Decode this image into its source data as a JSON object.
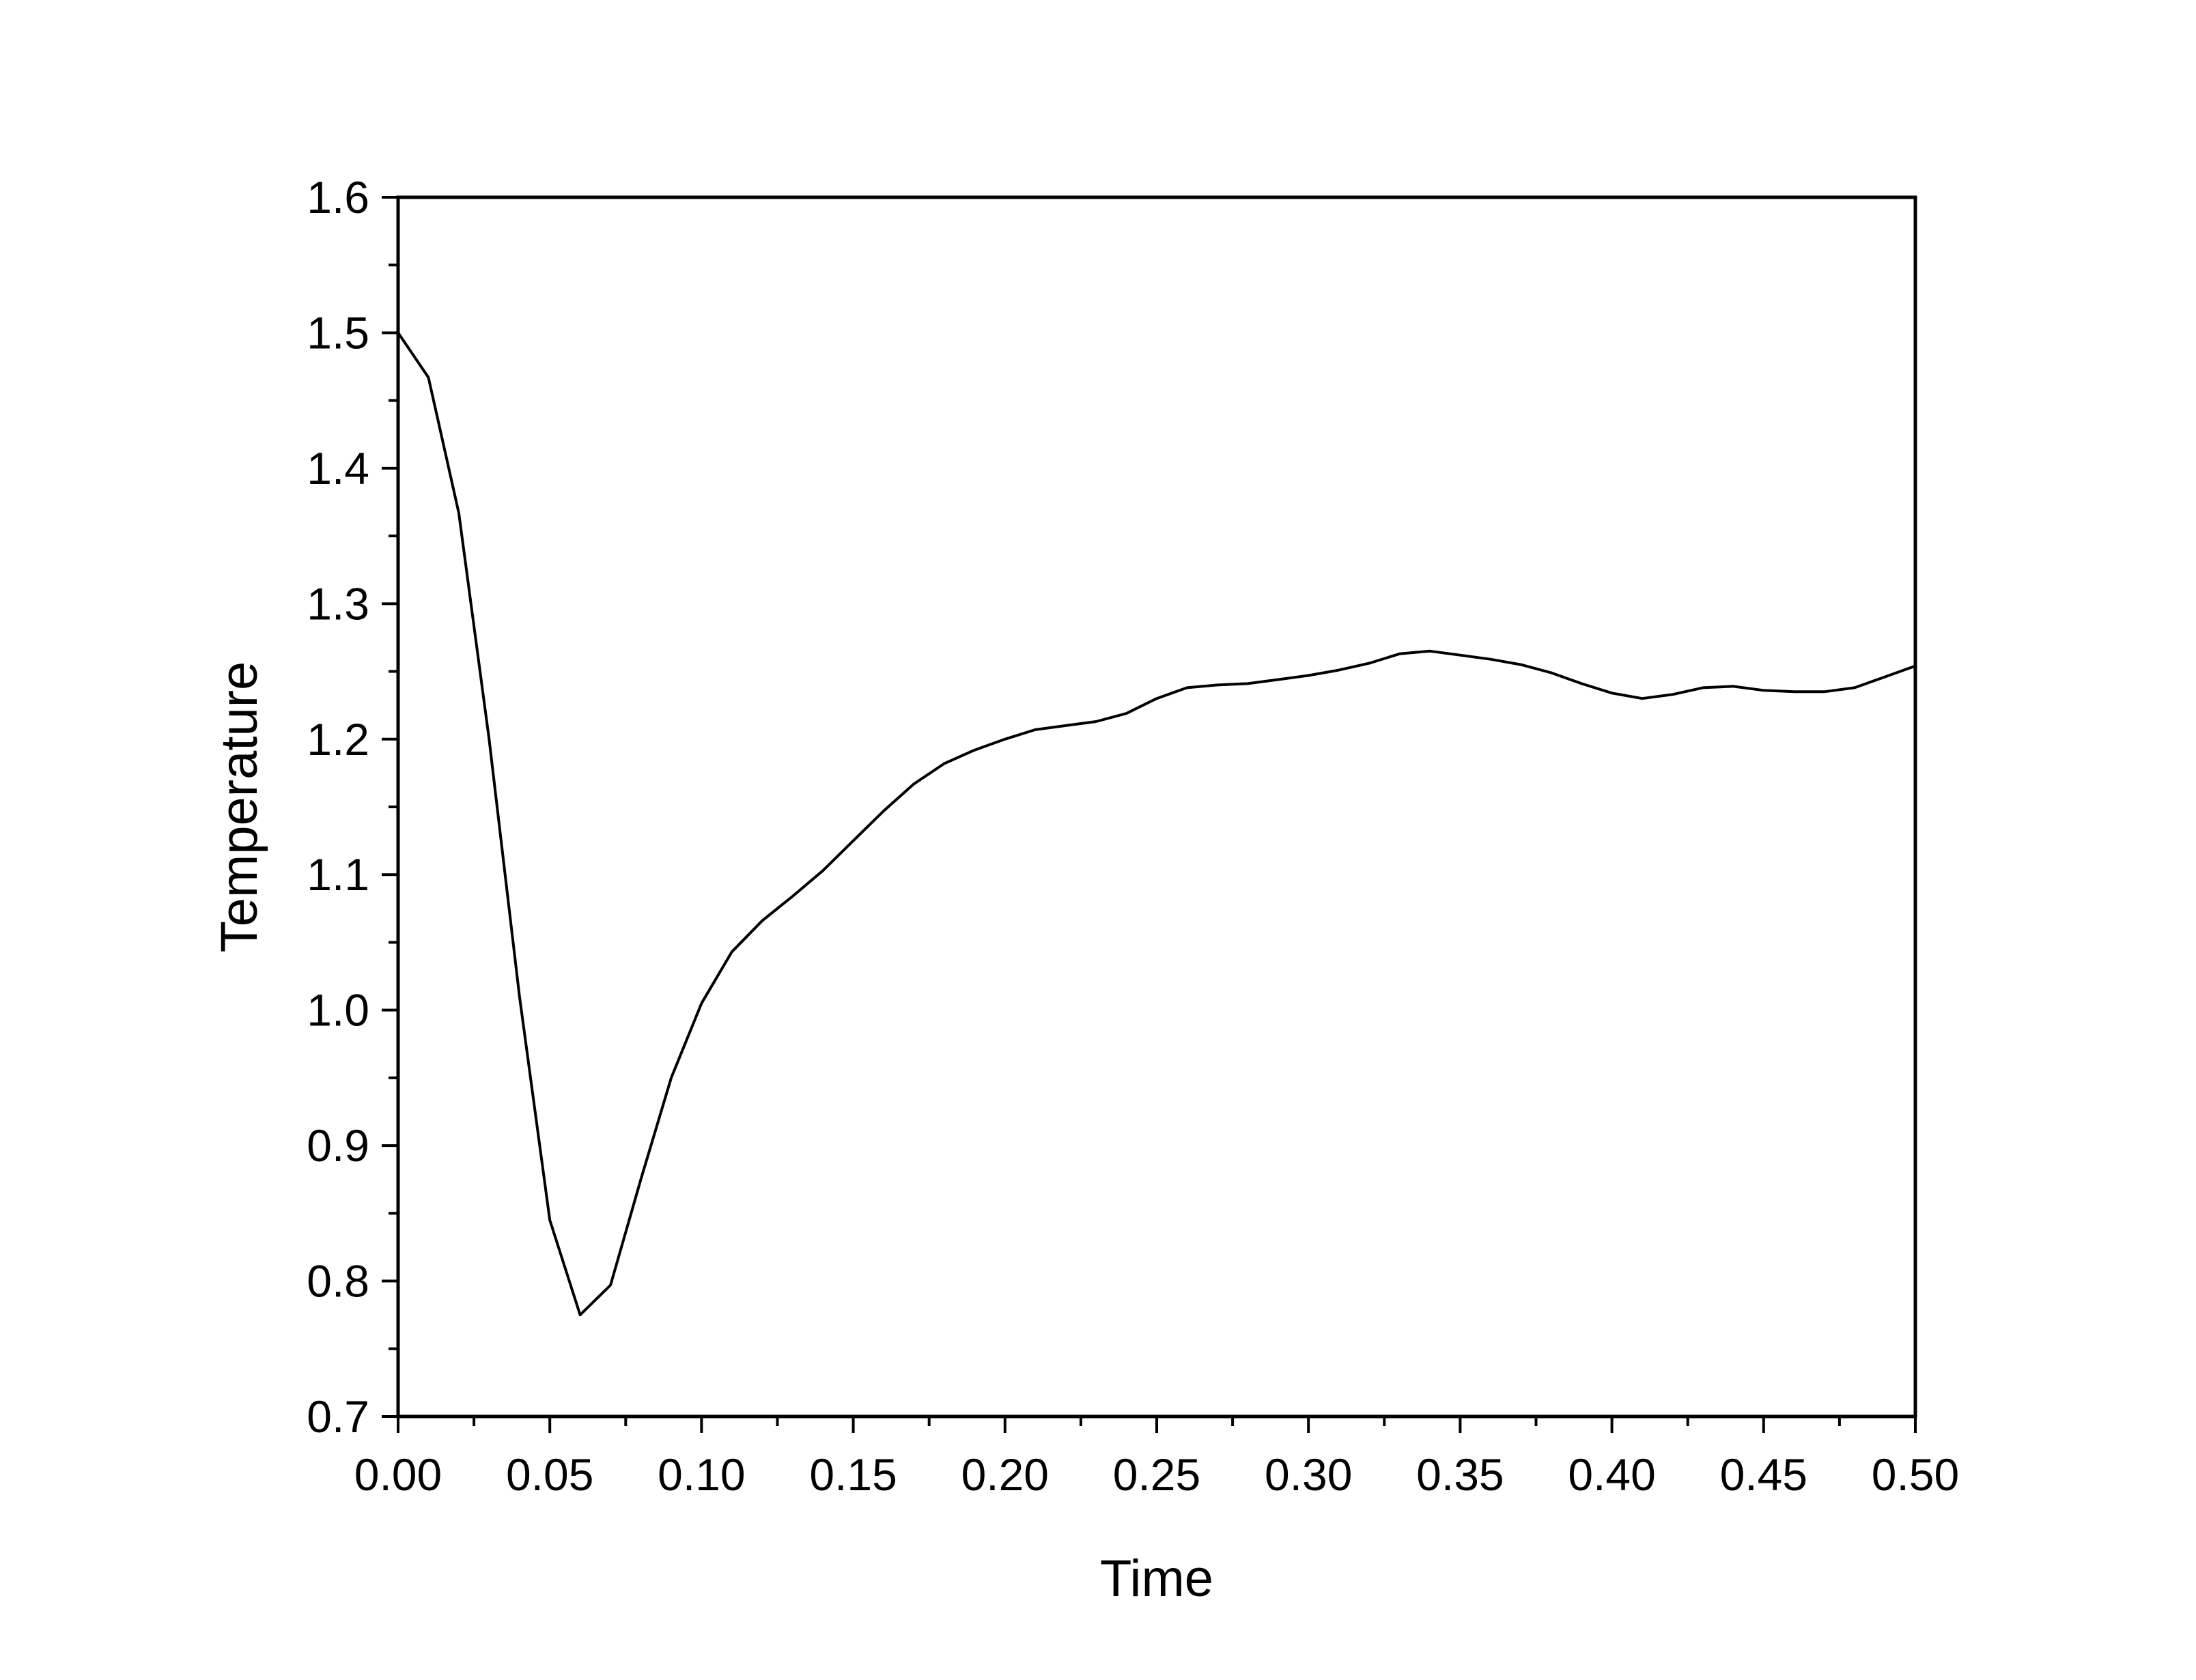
{
  "chart_data": {
    "type": "line",
    "title": "",
    "xlabel": "Time",
    "ylabel": "Temperature",
    "xlim": [
      0,
      0.5
    ],
    "ylim": [
      0.7,
      1.6
    ],
    "grid": false,
    "legend": "none",
    "line_color": "#000000",
    "x_ticks": [
      "0.00",
      "0.05",
      "0.10",
      "0.15",
      "0.20",
      "0.25",
      "0.30",
      "0.35",
      "0.40",
      "0.45",
      "0.50"
    ],
    "y_ticks": [
      "0.7",
      "0.8",
      "0.9",
      "1.0",
      "1.1",
      "1.2",
      "1.3",
      "1.4",
      "1.5",
      "1.6"
    ],
    "series": [
      {
        "x": [
          0.0,
          0.01,
          0.02,
          0.03,
          0.04,
          0.05,
          0.06,
          0.07,
          0.08,
          0.09,
          0.1,
          0.11,
          0.12,
          0.13,
          0.14,
          0.15,
          0.16,
          0.17,
          0.18,
          0.19,
          0.2,
          0.21,
          0.22,
          0.23,
          0.24,
          0.25,
          0.26,
          0.27,
          0.28,
          0.29,
          0.3,
          0.31,
          0.32,
          0.33,
          0.34,
          0.35,
          0.36,
          0.37,
          0.38,
          0.39,
          0.4,
          0.41,
          0.42,
          0.43,
          0.44,
          0.45,
          0.46,
          0.47,
          0.48,
          0.49,
          0.5
        ],
        "y": [
          1.5,
          1.467,
          1.367,
          1.2,
          1.01,
          0.845,
          0.775,
          0.797,
          0.875,
          0.95,
          1.005,
          1.043,
          1.066,
          1.084,
          1.103,
          1.125,
          1.147,
          1.167,
          1.182,
          1.192,
          1.2,
          1.207,
          1.21,
          1.213,
          1.219,
          1.23,
          1.238,
          1.24,
          1.241,
          1.244,
          1.247,
          1.251,
          1.256,
          1.263,
          1.265,
          1.262,
          1.259,
          1.255,
          1.249,
          1.241,
          1.234,
          1.23,
          1.233,
          1.238,
          1.239,
          1.236,
          1.235,
          1.235,
          1.238,
          1.246,
          1.254
        ]
      }
    ]
  }
}
